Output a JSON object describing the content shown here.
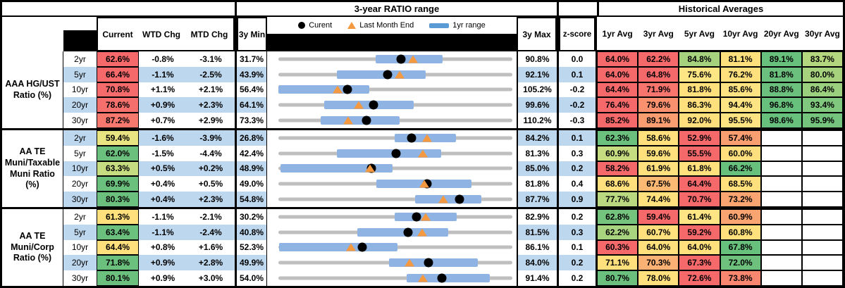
{
  "titles": {
    "ratio_range": "3-year RATIO range",
    "historical": "Historical Averages"
  },
  "headers": {
    "current": "Current",
    "wtd": "WTD Chg",
    "mtd": "MTD Chg",
    "min3y": "3y Min",
    "max3y": "3y Max",
    "zscore": "z-score",
    "avgs": [
      "1yr Avg",
      "3yr Avg",
      "5yr Avg",
      "10yr Avg",
      "20yr Avg",
      "30yr Avg"
    ]
  },
  "legend": {
    "current": "Curent",
    "last_month_end": "Last Month End",
    "one_year_range": "1yr range"
  },
  "colors": {
    "band_blue": "#BDD7EE",
    "bar_blue": "#8FB4E3",
    "legend_bar_blue": "#5B9BD5",
    "track_gray": "#BFBFBF",
    "triangle_orange": "#F4993F",
    "dot_black": "#000000",
    "heat_red": "#F5696B",
    "heat_orange": "#F99E70",
    "heat_yellow": "#FFE07D",
    "heat_yellow_green": "#C6DC81",
    "heat_light_green": "#A6D27E",
    "heat_green": "#6CC07D"
  },
  "chart_data": {
    "type": "table+range-dot",
    "note": "Each row: gray track spans 3y Min to 3y Max; blue bar = 1yr range; black dot = Current; orange triangle = Last Month End. bar/dot/tri are fractions of the min-max span; bar_values_est are estimated percents.",
    "groups": [
      {
        "label_lines": [
          "AAA HG/UST",
          "Ratio (%)"
        ],
        "rows": [
          {
            "tenor": "2yr",
            "band": "white",
            "current": "62.6%",
            "current_bg": "#F5696B",
            "wtd": "-0.8%",
            "mtd": "-3.1%",
            "min": "31.7%",
            "max": "90.8%",
            "z": "0.0",
            "bar": [
              0.416,
              0.702
            ],
            "dot": 0.523,
            "tri": 0.575,
            "bar_values_est": [
              56.3,
              73.2
            ],
            "last_month_end_value": 65.7,
            "avgs": [
              {
                "v": "64.0%",
                "bg": "#F5696B"
              },
              {
                "v": "62.2%",
                "bg": "#F5696B"
              },
              {
                "v": "84.8%",
                "bg": "#A6D27E"
              },
              {
                "v": "81.1%",
                "bg": "#FFE07D"
              },
              {
                "v": "89.1%",
                "bg": "#68C07D"
              },
              {
                "v": "83.7%",
                "bg": "#B4D67F"
              }
            ]
          },
          {
            "tenor": "5yr",
            "band": "blue",
            "current": "66.4%",
            "current_bg": "#F5696B",
            "wtd": "-1.1%",
            "mtd": "-2.5%",
            "min": "43.9%",
            "max": "92.1%",
            "z": "0.1",
            "bar": [
              0.25,
              0.63
            ],
            "dot": 0.467,
            "tri": 0.519,
            "bar_values_est": [
              55.9,
              74.3
            ],
            "last_month_end_value": 68.9,
            "avgs": [
              {
                "v": "64.0%",
                "bg": "#F5696B"
              },
              {
                "v": "64.8%",
                "bg": "#F5696B"
              },
              {
                "v": "75.6%",
                "bg": "#FFE685"
              },
              {
                "v": "76.2%",
                "bg": "#FFE07D"
              },
              {
                "v": "81.8%",
                "bg": "#6CC07D"
              },
              {
                "v": "80.0%",
                "bg": "#A6D27E"
              }
            ]
          },
          {
            "tenor": "10yr",
            "band": "white",
            "current": "70.8%",
            "current_bg": "#F56A6B",
            "wtd": "+1.1%",
            "mtd": "+2.1%",
            "min": "56.4%",
            "max": "105.2%",
            "z": "-0.2",
            "bar": [
              0.0,
              0.39
            ],
            "dot": 0.295,
            "tri": 0.252,
            "bar_values_est": [
              56.4,
              75.4
            ],
            "last_month_end_value": 68.7,
            "avgs": [
              {
                "v": "64.4%",
                "bg": "#F5696B"
              },
              {
                "v": "71.9%",
                "bg": "#F7756D"
              },
              {
                "v": "81.8%",
                "bg": "#FFE07D"
              },
              {
                "v": "85.6%",
                "bg": "#FFE281"
              },
              {
                "v": "88.8%",
                "bg": "#6CC07D"
              },
              {
                "v": "86.4%",
                "bg": "#9BD07E"
              }
            ]
          },
          {
            "tenor": "20yr",
            "band": "blue",
            "current": "78.6%",
            "current_bg": "#F5706C",
            "wtd": "+0.9%",
            "mtd": "+2.3%",
            "min": "64.1%",
            "max": "99.6%",
            "z": "-0.2",
            "bar": [
              0.196,
              0.578
            ],
            "dot": 0.408,
            "tri": 0.344,
            "bar_values_est": [
              71.1,
              84.6
            ],
            "last_month_end_value": 76.3,
            "avgs": [
              {
                "v": "76.4%",
                "bg": "#F5696B"
              },
              {
                "v": "79.6%",
                "bg": "#F9916F"
              },
              {
                "v": "86.3%",
                "bg": "#FFE07D"
              },
              {
                "v": "94.4%",
                "bg": "#FFE483"
              },
              {
                "v": "96.8%",
                "bg": "#68C07D"
              },
              {
                "v": "93.4%",
                "bg": "#7FC87E"
              }
            ]
          },
          {
            "tenor": "30yr",
            "band": "white",
            "current": "87.2%",
            "current_bg": "#F7786D",
            "wtd": "+0.7%",
            "mtd": "+2.9%",
            "min": "73.3%",
            "max": "110.2%",
            "z": "-0.3",
            "bar": [
              0.18,
              0.517
            ],
            "dot": 0.377,
            "tri": 0.298,
            "bar_values_est": [
              79.9,
              92.4
            ],
            "last_month_end_value": 84.3,
            "avgs": [
              {
                "v": "85.2%",
                "bg": "#F5696B"
              },
              {
                "v": "89.1%",
                "bg": "#FA9D71"
              },
              {
                "v": "92.0%",
                "bg": "#FFE07D"
              },
              {
                "v": "95.5%",
                "bg": "#FFE382"
              },
              {
                "v": "98.6%",
                "bg": "#68C07D"
              },
              {
                "v": "95.9%",
                "bg": "#75C47D"
              }
            ]
          }
        ]
      },
      {
        "label_lines": [
          "AA TE",
          "Muni/Taxable",
          "Muni Ratio",
          "(%)"
        ],
        "rows": [
          {
            "tenor": "2yr",
            "band": "blue",
            "current": "59.4%",
            "current_bg": "#E8E482",
            "wtd": "-1.6%",
            "mtd": "-3.9%",
            "min": "26.8%",
            "max": "84.2%",
            "z": "0.1",
            "bar": [
              0.497,
              0.758
            ],
            "dot": 0.568,
            "tri": 0.636,
            "bar_values_est": [
              55.3,
              70.3
            ],
            "last_month_end_value": 63.3,
            "avgs": [
              {
                "v": "62.3%",
                "bg": "#6CC07D"
              },
              {
                "v": "58.6%",
                "bg": "#FFE07D"
              },
              {
                "v": "52.9%",
                "bg": "#F5696B"
              },
              {
                "v": "57.4%",
                "bg": "#F99E70"
              },
              {
                "v": "",
                "bg": "#FFFFFF"
              },
              {
                "v": "",
                "bg": "#FFFFFF"
              }
            ]
          },
          {
            "tenor": "5yr",
            "band": "white",
            "current": "62.0%",
            "current_bg": "#6CC07D",
            "wtd": "-1.5%",
            "mtd": "-4.4%",
            "min": "42.4%",
            "max": "81.3%",
            "z": "0.3",
            "bar": [
              0.25,
              0.696
            ],
            "dot": 0.504,
            "tri": 0.617,
            "bar_values_est": [
              52.1,
              69.5
            ],
            "last_month_end_value": 66.4,
            "avgs": [
              {
                "v": "60.9%",
                "bg": "#C6DC81"
              },
              {
                "v": "59.6%",
                "bg": "#FFE07D"
              },
              {
                "v": "55.5%",
                "bg": "#F5696B"
              },
              {
                "v": "60.0%",
                "bg": "#FFDF7D"
              },
              {
                "v": "",
                "bg": "#FFFFFF"
              },
              {
                "v": "",
                "bg": "#FFFFFF"
              }
            ]
          },
          {
            "tenor": "10yr",
            "band": "blue",
            "current": "63.3%",
            "current_bg": "#C6DC81",
            "wtd": "+0.5%",
            "mtd": "+0.2%",
            "min": "48.9%",
            "max": "85.0%",
            "z": "0.2",
            "bar": [
              0.01,
              0.489
            ],
            "dot": 0.399,
            "tri": 0.393,
            "bar_values_est": [
              49.3,
              66.6
            ],
            "last_month_end_value": 63.1,
            "avgs": [
              {
                "v": "58.2%",
                "bg": "#F5696B"
              },
              {
                "v": "61.9%",
                "bg": "#FFE07D"
              },
              {
                "v": "61.8%",
                "bg": "#FFE07D"
              },
              {
                "v": "66.2%",
                "bg": "#68C07D"
              },
              {
                "v": "",
                "bg": "#FFFFFF"
              },
              {
                "v": "",
                "bg": "#FFFFFF"
              }
            ]
          },
          {
            "tenor": "20yr",
            "band": "white",
            "current": "69.9%",
            "current_bg": "#6CC07D",
            "wtd": "+0.4%",
            "mtd": "+0.5%",
            "min": "49.0%",
            "max": "81.8%",
            "z": "0.4",
            "bar": [
              0.419,
              0.826
            ],
            "dot": 0.637,
            "tri": 0.622,
            "bar_values_est": [
              62.7,
              76.1
            ],
            "last_month_end_value": 69.4,
            "avgs": [
              {
                "v": "68.6%",
                "bg": "#FFE07D"
              },
              {
                "v": "67.5%",
                "bg": "#FBB974"
              },
              {
                "v": "64.4%",
                "bg": "#F5696B"
              },
              {
                "v": "68.5%",
                "bg": "#FFE07D"
              },
              {
                "v": "",
                "bg": "#FFFFFF"
              },
              {
                "v": "",
                "bg": "#FFFFFF"
              }
            ]
          },
          {
            "tenor": "30yr",
            "band": "blue",
            "current": "80.3%",
            "current_bg": "#6CC07D",
            "wtd": "+0.4%",
            "mtd": "+2.3%",
            "min": "54.8%",
            "max": "87.7%",
            "z": "0.9",
            "bar": [
              0.585,
              0.866
            ],
            "dot": 0.775,
            "tri": 0.705,
            "bar_values_est": [
              74.0,
              83.3
            ],
            "last_month_end_value": 78.0,
            "avgs": [
              {
                "v": "77.7%",
                "bg": "#BAD880"
              },
              {
                "v": "74.4%",
                "bg": "#FFE07D"
              },
              {
                "v": "70.7%",
                "bg": "#F5696B"
              },
              {
                "v": "73.2%",
                "bg": "#F9A471"
              },
              {
                "v": "",
                "bg": "#FFFFFF"
              },
              {
                "v": "",
                "bg": "#FFFFFF"
              }
            ]
          }
        ]
      },
      {
        "label_lines": [
          "AA TE",
          "Muni/Corp",
          "Ratio (%)"
        ],
        "rows": [
          {
            "tenor": "2yr",
            "band": "white",
            "current": "61.3%",
            "current_bg": "#FFE07D",
            "wtd": "-1.1%",
            "mtd": "-2.1%",
            "min": "30.2%",
            "max": "82.9%",
            "z": "0.2",
            "bar": [
              0.497,
              0.762
            ],
            "dot": 0.59,
            "tri": 0.63,
            "bar_values_est": [
              56.4,
              70.4
            ],
            "last_month_end_value": 63.4,
            "avgs": [
              {
                "v": "62.8%",
                "bg": "#74C47D"
              },
              {
                "v": "59.4%",
                "bg": "#F5696B"
              },
              {
                "v": "61.4%",
                "bg": "#FFE584"
              },
              {
                "v": "60.9%",
                "bg": "#F9A471"
              },
              {
                "v": "",
                "bg": "#FFFFFF"
              },
              {
                "v": "",
                "bg": "#FFFFFF"
              }
            ]
          },
          {
            "tenor": "5yr",
            "band": "blue",
            "current": "63.4%",
            "current_bg": "#6CC07D",
            "wtd": "-1.1%",
            "mtd": "-2.4%",
            "min": "40.8%",
            "max": "81.5%",
            "z": "0.3",
            "bar": [
              0.338,
              0.726
            ],
            "dot": 0.555,
            "tri": 0.614,
            "bar_values_est": [
              54.6,
              70.3
            ],
            "last_month_end_value": 65.8,
            "avgs": [
              {
                "v": "62.2%",
                "bg": "#A9D47F"
              },
              {
                "v": "60.7%",
                "bg": "#FFE07D"
              },
              {
                "v": "59.2%",
                "bg": "#F5696B"
              },
              {
                "v": "60.8%",
                "bg": "#FFE07D"
              },
              {
                "v": "",
                "bg": "#FFFFFF"
              },
              {
                "v": "",
                "bg": "#FFFFFF"
              }
            ]
          },
          {
            "tenor": "10yr",
            "band": "white",
            "current": "64.4%",
            "current_bg": "#FFE07D",
            "wtd": "+0.8%",
            "mtd": "+1.6%",
            "min": "52.3%",
            "max": "86.1%",
            "z": "0.1",
            "bar": [
              0.003,
              0.509
            ],
            "dot": 0.358,
            "tri": 0.311,
            "bar_values_est": [
              52.3,
              69.5
            ],
            "last_month_end_value": 62.8,
            "avgs": [
              {
                "v": "60.3%",
                "bg": "#F5696B"
              },
              {
                "v": "64.0%",
                "bg": "#FFE07D"
              },
              {
                "v": "64.0%",
                "bg": "#FFE07D"
              },
              {
                "v": "67.8%",
                "bg": "#68C07D"
              },
              {
                "v": "",
                "bg": "#FFFFFF"
              },
              {
                "v": "",
                "bg": "#FFFFFF"
              }
            ]
          },
          {
            "tenor": "20yr",
            "band": "blue",
            "current": "71.8%",
            "current_bg": "#6CC07D",
            "wtd": "+0.9%",
            "mtd": "+2.8%",
            "min": "49.9%",
            "max": "84.0%",
            "z": "0.2",
            "bar": [
              0.472,
              0.853
            ],
            "dot": 0.642,
            "tri": 0.56,
            "bar_values_est": [
              66.0,
              79.0
            ],
            "last_month_end_value": 69.0,
            "avgs": [
              {
                "v": "71.1%",
                "bg": "#FFE07D"
              },
              {
                "v": "70.3%",
                "bg": "#FBB173"
              },
              {
                "v": "67.3%",
                "bg": "#F5696B"
              },
              {
                "v": "72.0%",
                "bg": "#6EC17D"
              },
              {
                "v": "",
                "bg": "#FFFFFF"
              },
              {
                "v": "",
                "bg": "#FFFFFF"
              }
            ]
          },
          {
            "tenor": "30yr",
            "band": "white",
            "current": "80.1%",
            "current_bg": "#6CC07D",
            "wtd": "+0.9%",
            "mtd": "+3.0%",
            "min": "54.0%",
            "max": "91.4%",
            "z": "0.2",
            "bar": [
              0.547,
              0.904
            ],
            "dot": 0.698,
            "tri": 0.618,
            "bar_values_est": [
              74.5,
              87.8
            ],
            "last_month_end_value": 77.1,
            "avgs": [
              {
                "v": "80.7%",
                "bg": "#6CC07D"
              },
              {
                "v": "78.0%",
                "bg": "#FFE07D"
              },
              {
                "v": "72.6%",
                "bg": "#F5696B"
              },
              {
                "v": "73.8%",
                "bg": "#F9876F"
              },
              {
                "v": "",
                "bg": "#FFFFFF"
              },
              {
                "v": "",
                "bg": "#FFFFFF"
              }
            ]
          }
        ]
      }
    ]
  }
}
